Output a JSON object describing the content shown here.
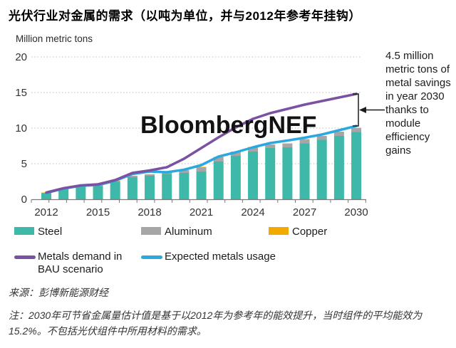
{
  "title": "光伏行业对金属的需求（以吨为单位，并与2012年参考年挂钩）",
  "unit_label": "Million metric tons",
  "watermark": "BloombergNEF",
  "annotation": "4.5 million metric tons of metal savings in year 2030 thanks to module efficiency gains",
  "legend": {
    "steel": "Steel",
    "aluminum": "Aluminum",
    "copper": "Copper",
    "bau": "Metals demand in BAU scenario",
    "expected": "Expected metals usage"
  },
  "source": "来源：彭博新能源财经",
  "note": "注：2030年可节省金属量估计值是基于以2012年为参考年的能效提升，当时组件的平均能效为15.2%。不包括光伏组件中所用材料的需求。",
  "colors": {
    "steel": "#3EB9A9",
    "aluminum": "#A6A6A6",
    "copper": "#F2A900",
    "bau_line": "#7A52A1",
    "expected_line": "#29A9DF",
    "grid": "#bdbdbd",
    "axis": "#7a7a7a",
    "tick_text": "#333333",
    "bracket": "#1c1c1c"
  },
  "chart_data": {
    "type": "bar",
    "subtype": "stacked-bars-with-overlay-lines",
    "title": "光伏行业对金属的需求（以吨为单位，并与2012年参考年挂钩）",
    "xlabel": "",
    "ylabel": "Million metric tons",
    "ylim": [
      0,
      20
    ],
    "yticks": [
      0,
      5,
      10,
      15,
      20
    ],
    "grid": "dotted-horizontal",
    "legend_position": "bottom",
    "x": [
      2012,
      2013,
      2014,
      2015,
      2016,
      2017,
      2018,
      2019,
      2020,
      2021,
      2022,
      2023,
      2024,
      2025,
      2026,
      2027,
      2028,
      2029,
      2030
    ],
    "xtick_labels": [
      "2012",
      "2015",
      "2018",
      "2021",
      "2024",
      "2027",
      "2030"
    ],
    "bar_series": [
      {
        "name": "Steel",
        "color": "#3EB9A9",
        "values": [
          0.85,
          1.4,
          1.75,
          1.85,
          2.45,
          3.1,
          3.3,
          3.55,
          3.7,
          3.9,
          5.3,
          6.1,
          6.7,
          7.2,
          7.3,
          7.85,
          8.35,
          8.9,
          9.45
        ]
      },
      {
        "name": "Aluminum",
        "color": "#A6A6A6",
        "values": [
          0.05,
          0.08,
          0.1,
          0.1,
          0.1,
          0.15,
          0.15,
          0.25,
          0.35,
          0.6,
          0.6,
          0.55,
          0.6,
          0.45,
          0.5,
          0.55,
          0.5,
          0.55,
          0.55
        ]
      },
      {
        "name": "Copper",
        "color": "#F2A900",
        "values": [
          0.05,
          0.05,
          0.05,
          0.05,
          0.05,
          0.05,
          0.05,
          0.05,
          0.05,
          0.05,
          0.05,
          0.05,
          0.05,
          0.05,
          0.05,
          0.05,
          0.05,
          0.05,
          0.05
        ]
      }
    ],
    "line_series": [
      {
        "name": "Expected metals usage",
        "color": "#29A9DF",
        "values": [
          0.9,
          1.5,
          1.9,
          2.0,
          2.6,
          3.55,
          3.9,
          3.8,
          4.15,
          4.8,
          6.0,
          6.6,
          7.3,
          7.9,
          8.25,
          8.65,
          9.1,
          9.7,
          10.3
        ]
      },
      {
        "name": "Metals demand in BAU scenario",
        "color": "#7A52A1",
        "values": [
          0.95,
          1.55,
          1.95,
          2.1,
          2.7,
          3.7,
          4.05,
          4.5,
          5.7,
          7.2,
          8.7,
          10.1,
          11.3,
          12.1,
          12.7,
          13.3,
          13.8,
          14.3,
          14.8
        ]
      }
    ],
    "annotation": {
      "text": "4.5 million metric tons of metal savings in year 2030 thanks to module efficiency gains",
      "year": 2030,
      "from_value": 10.3,
      "to_value": 14.8
    }
  }
}
